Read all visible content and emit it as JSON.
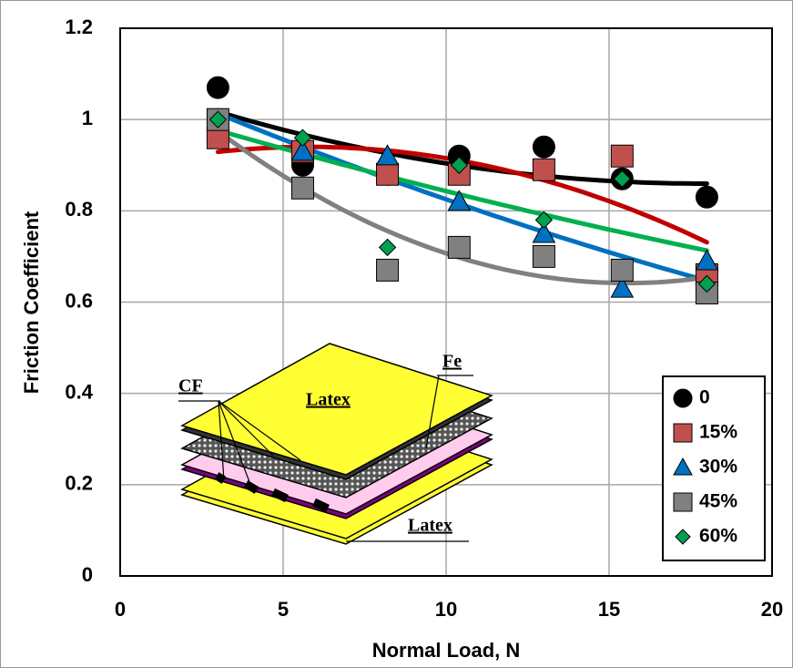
{
  "chart_data": {
    "type": "scatter",
    "xlabel": "Normal Load, N",
    "ylabel": "Friction Coefficient",
    "x": [
      3,
      5.6,
      8.2,
      10.4,
      13,
      15.4,
      18
    ],
    "series": [
      {
        "name": "0",
        "color": "#000000",
        "marker": "circle",
        "values": [
          1.07,
          0.9,
          0.88,
          0.92,
          0.94,
          0.87,
          0.83
        ]
      },
      {
        "name": "15%",
        "color": "#c0504d",
        "marker": "square",
        "values": [
          0.96,
          0.93,
          0.88,
          0.88,
          0.89,
          0.92,
          0.66
        ]
      },
      {
        "name": "30%",
        "color": "#0070c0",
        "marker": "triangle",
        "values": [
          1.0,
          0.93,
          0.92,
          0.82,
          0.75,
          0.63,
          0.69
        ]
      },
      {
        "name": "45%",
        "color": "#808080",
        "marker": "square",
        "values": [
          1.0,
          0.85,
          0.67,
          0.72,
          0.7,
          0.67,
          0.62
        ]
      },
      {
        "name": "60%",
        "color": "#00a050",
        "marker": "diamond",
        "values": [
          1.0,
          0.96,
          0.72,
          0.9,
          0.78,
          0.87,
          0.64
        ]
      }
    ],
    "trend_colors": [
      "#000000",
      "#c00000",
      "#0070c0",
      "#808080",
      "#00b050"
    ],
    "xlim": [
      0,
      20
    ],
    "xticks": [
      0,
      5,
      10,
      15,
      20
    ],
    "ylim": [
      0,
      1.2
    ],
    "yticks": [
      0,
      0.2,
      0.4,
      0.6,
      0.8,
      1,
      1.2
    ],
    "grid": true,
    "legend": "lower right",
    "annotations": [
      "CF",
      "Latex",
      "Fe",
      "Latex"
    ]
  }
}
